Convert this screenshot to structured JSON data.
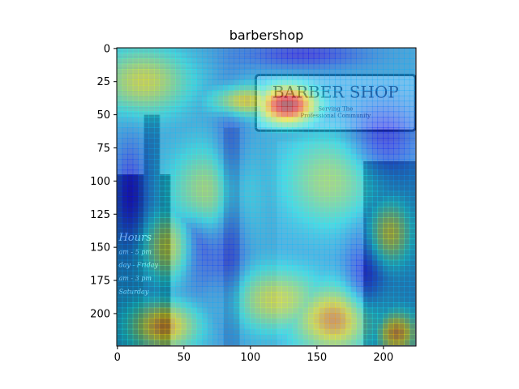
{
  "chart_data": {
    "type": "heatmap",
    "title": "barbershop",
    "xlabel": "",
    "ylabel": "",
    "xlim": [
      0,
      224
    ],
    "ylim": [
      224,
      0
    ],
    "x_ticks": [
      0,
      50,
      100,
      150,
      200
    ],
    "y_ticks": [
      0,
      25,
      50,
      75,
      100,
      125,
      150,
      175,
      200
    ],
    "colormap": "jet",
    "overlay_opacity": 0.45,
    "background_palette": {
      "siding": "#8fa0b8",
      "sign": "#d8d0e0",
      "door": "#3a3f6a",
      "window": "#9ab0c8",
      "pillar": "#6d7a98",
      "dark": "#2a2e4a"
    },
    "sign_text": [
      "BARBER SHOP",
      "Serving The",
      "Professional Community"
    ],
    "window_text": [
      "Hours",
      "am - 5 pm",
      "day - Friday",
      "am - 3 pm",
      "Saturday"
    ],
    "hotspots": [
      {
        "x": 128,
        "y": 43,
        "intensity": 1.0,
        "rx": 18,
        "ry": 12
      },
      {
        "x": 95,
        "y": 40,
        "intensity": 0.55,
        "rx": 20,
        "ry": 10
      },
      {
        "x": 35,
        "y": 210,
        "intensity": 0.6,
        "rx": 22,
        "ry": 16
      },
      {
        "x": 165,
        "y": 205,
        "intensity": 0.65,
        "rx": 28,
        "ry": 22
      },
      {
        "x": 210,
        "y": 215,
        "intensity": 0.6,
        "rx": 14,
        "ry": 14
      },
      {
        "x": 120,
        "y": 190,
        "intensity": 0.45,
        "rx": 30,
        "ry": 20
      },
      {
        "x": 20,
        "y": 25,
        "intensity": 0.45,
        "rx": 30,
        "ry": 22
      },
      {
        "x": 40,
        "y": 150,
        "intensity": 0.45,
        "rx": 18,
        "ry": 22
      },
      {
        "x": 205,
        "y": 140,
        "intensity": 0.45,
        "rx": 14,
        "ry": 20
      },
      {
        "x": 70,
        "y": 110,
        "intensity": 0.4,
        "rx": 26,
        "ry": 30
      },
      {
        "x": 160,
        "y": 100,
        "intensity": 0.35,
        "rx": 30,
        "ry": 30
      }
    ],
    "coldspots": [
      {
        "x": 140,
        "y": 5,
        "rx": 45,
        "ry": 10
      },
      {
        "x": 200,
        "y": 70,
        "rx": 25,
        "ry": 25
      },
      {
        "x": 85,
        "y": 120,
        "rx": 12,
        "ry": 80
      },
      {
        "x": 60,
        "y": 150,
        "rx": 15,
        "ry": 30
      },
      {
        "x": 10,
        "y": 110,
        "rx": 12,
        "ry": 40
      },
      {
        "x": 185,
        "y": 180,
        "rx": 14,
        "ry": 40
      }
    ]
  }
}
